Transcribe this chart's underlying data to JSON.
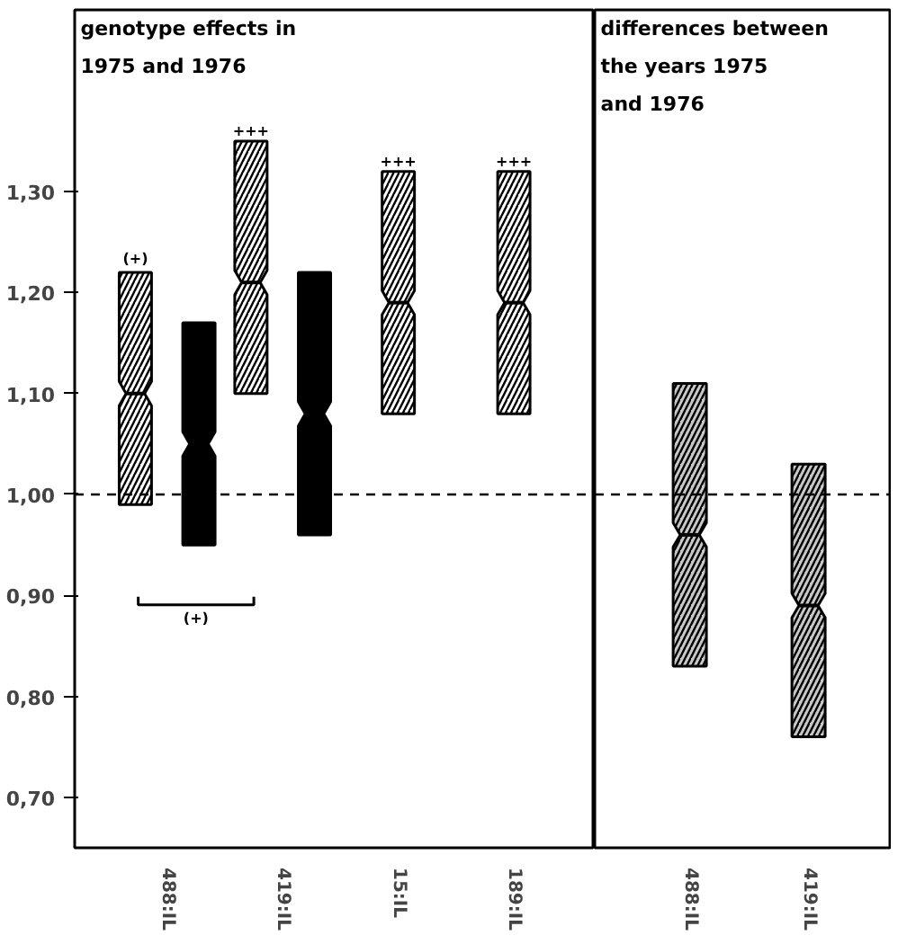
{
  "chart_data": [
    {
      "type": "box",
      "title": "genotype effects in\n1975 and 1976",
      "categories": [
        "488:IL",
        "419:IL",
        "15:IL",
        "189:IL"
      ],
      "series": [
        {
          "color": "#ffffff",
          "boxes": [
            {
              "low": 0.99,
              "q1": 0.99,
              "median": 1.1,
              "q3": 1.22,
              "high": 1.22
            },
            {
              "low": 1.1,
              "q1": 1.1,
              "median": 1.21,
              "q3": 1.35,
              "high": 1.35
            },
            {
              "low": 1.08,
              "q1": 1.08,
              "median": 1.19,
              "q3": 1.32,
              "high": 1.32
            },
            {
              "low": 1.08,
              "q1": 1.08,
              "median": 1.19,
              "q3": 1.32,
              "high": 1.32
            }
          ]
        },
        {
          "color": "#000000",
          "boxes": [
            {
              "low": 0.95,
              "q1": 0.95,
              "median": 1.05,
              "q3": 1.17,
              "high": 1.17
            },
            {
              "low": 0.96,
              "q1": 0.96,
              "median": 1.08,
              "q3": 1.22,
              "high": 1.22
            },
            null,
            null
          ]
        }
      ],
      "ylim": [
        0.65,
        1.48
      ],
      "yticks": [
        {
          "value": 0.7,
          "label": "0,70"
        },
        {
          "value": 0.8,
          "label": "0,80"
        },
        {
          "value": 0.9,
          "label": "0,90"
        },
        {
          "value": 1.0,
          "label": "1,00"
        },
        {
          "value": 1.1,
          "label": "1,10"
        },
        {
          "value": 1.2,
          "label": "1,20"
        },
        {
          "value": 1.3,
          "label": "1,30"
        }
      ],
      "ref_lines": [
        {
          "axis": "y",
          "value": 1.0,
          "line_style": "dashed"
        }
      ],
      "annotations": [
        "(+)",
        "+++",
        {
          "text": "+++",
          "x": "15:IL",
          "y": 1.32
        },
        {
          "text": "+++",
          "x": "189:IL",
          "y": 1.32
        },
        "(+)"
      ]
    },
    {
      "type": "box",
      "title": "differences between\nthe years 1975\n            and 1976",
      "categories": [
        "488:IL",
        "419:IL"
      ],
      "series": [
        {
          "color": "#c8c8c8",
          "boxes": [
            {
              "low": 0.83,
              "q1": 0.83,
              "median": 0.96,
              "q3": 1.11,
              "high": 1.11
            },
            {
              "low": 0.76,
              "q1": 0.76,
              "median": 0.89,
              "q3": 1.03,
              "high": 1.03
            }
          ]
        }
      ],
      "ylim": [
        0.65,
        1.48
      ],
      "tick_labels": "x",
      "ref_lines": [
        {
          "axis": "y",
          "value": 1.0,
          "line_style": "dashed"
        }
      ]
    }
  ]
}
